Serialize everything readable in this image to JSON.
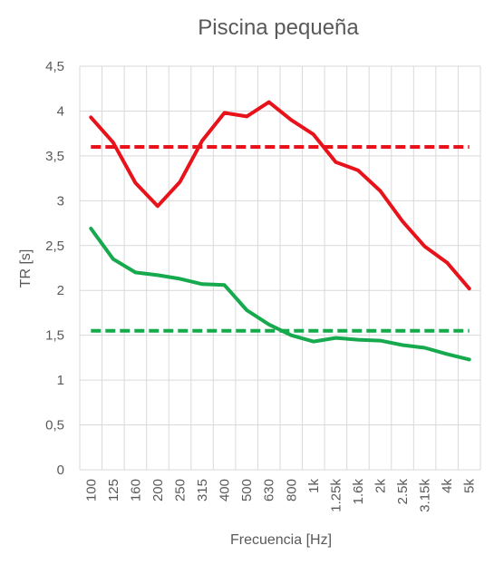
{
  "chart_data": {
    "type": "line",
    "title": "Piscina pequeña",
    "xlabel": "Frecuencia [Hz]",
    "ylabel": "TR [s]",
    "categories": [
      "100",
      "125",
      "160",
      "200",
      "250",
      "315",
      "400",
      "500",
      "630",
      "800",
      "1k",
      "1.25k",
      "1.6k",
      "2k",
      "2.5k",
      "3.15k",
      "4k",
      "5k"
    ],
    "y_ticks": [
      "0",
      "0,5",
      "1",
      "1,5",
      "2",
      "2,5",
      "3",
      "3,5",
      "4",
      "4,5"
    ],
    "ylim": [
      0,
      4.5
    ],
    "grid": true,
    "legend": "none",
    "series": [
      {
        "color": "#e8121a",
        "dashed": false,
        "values": [
          3.93,
          3.65,
          3.2,
          2.94,
          3.21,
          3.67,
          3.98,
          3.94,
          4.1,
          3.9,
          3.74,
          3.43,
          3.34,
          3.11,
          2.77,
          2.49,
          2.31,
          2.02
        ]
      },
      {
        "color": "#e8121a",
        "dashed": true,
        "values": [
          3.6,
          3.6,
          3.6,
          3.6,
          3.6,
          3.6,
          3.6,
          3.6,
          3.6,
          3.6,
          3.6,
          3.6,
          3.6,
          3.6,
          3.6,
          3.6,
          3.6,
          3.6
        ]
      },
      {
        "color": "#17a94e",
        "dashed": false,
        "values": [
          2.69,
          2.35,
          2.2,
          2.17,
          2.13,
          2.07,
          2.06,
          1.78,
          1.62,
          1.5,
          1.43,
          1.47,
          1.45,
          1.44,
          1.39,
          1.36,
          1.29,
          1.23
        ]
      },
      {
        "color": "#17a94e",
        "dashed": true,
        "values": [
          1.55,
          1.55,
          1.55,
          1.55,
          1.55,
          1.55,
          1.55,
          1.55,
          1.55,
          1.55,
          1.55,
          1.55,
          1.55,
          1.55,
          1.55,
          1.55,
          1.55,
          1.55
        ]
      }
    ]
  }
}
